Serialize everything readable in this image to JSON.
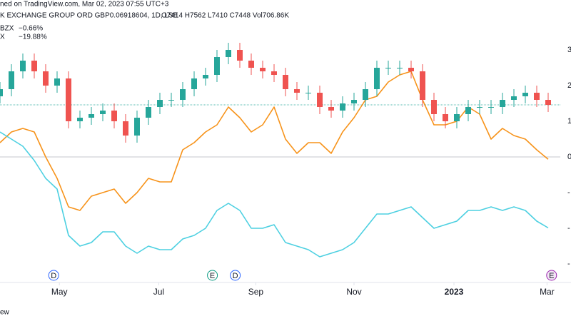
{
  "chart_data": {
    "type": "candlestick",
    "header": {
      "published": "ned on TradingView.com, Mar 02, 2023 07:55 UTC+3",
      "symbol": "K EXCHANGE GROUP ORD GBP0.06918604, 1D, LSE",
      "ohlc": "O7414 H7562 L7410 C7448 Vol706.86K"
    },
    "footer": "ew",
    "x": [
      0,
      1,
      2,
      3,
      4,
      5,
      6,
      7,
      8,
      9,
      10,
      11,
      12,
      13,
      14,
      15,
      16,
      17,
      18,
      19,
      20,
      21,
      22,
      23,
      24,
      25,
      26,
      27,
      28,
      29,
      30,
      31,
      32,
      33,
      34,
      35,
      36,
      37,
      38,
      39,
      40,
      41,
      42,
      43,
      44,
      45,
      46,
      47,
      48
    ],
    "xlim": [
      0,
      50
    ],
    "xticks": [
      {
        "value": 5.2,
        "label": "May"
      },
      {
        "value": 13.9,
        "label": "Jul"
      },
      {
        "value": 22.4,
        "label": "Sep"
      },
      {
        "value": 31,
        "label": "Nov"
      },
      {
        "value": 39.75,
        "label": "2023"
      },
      {
        "value": 47.9,
        "label": "Mar"
      }
    ],
    "ylim": [
      -36,
      44
    ],
    "yticks": [
      {
        "value": 30,
        "label": "3"
      },
      {
        "value": 20,
        "label": "2"
      },
      {
        "value": 10,
        "label": "1"
      },
      {
        "value": 0,
        "label": "0"
      },
      {
        "value": -10,
        "label": "-"
      },
      {
        "value": -20,
        "label": "-"
      },
      {
        "value": -30,
        "label": "-"
      }
    ],
    "up_color": "#26a69a",
    "down_color": "#ef5350",
    "open": [
      17,
      19,
      24,
      27,
      24,
      20,
      22,
      10,
      11,
      12,
      13,
      10,
      6,
      11,
      14,
      16,
      16,
      19,
      22,
      23,
      28,
      30,
      27,
      25,
      24,
      23,
      19,
      18,
      18,
      14,
      13,
      15,
      16,
      19,
      25,
      25,
      25,
      24,
      16,
      12,
      10,
      12,
      14,
      14,
      14,
      16,
      17,
      18,
      16
    ],
    "high": [
      21,
      26,
      29,
      29,
      26,
      24,
      24,
      13,
      14,
      15,
      15,
      12,
      13,
      16,
      18,
      18,
      21,
      24,
      25,
      30,
      32,
      32,
      29,
      27,
      26,
      25,
      21,
      20,
      20,
      16,
      17,
      18,
      21,
      27,
      27,
      27,
      27,
      26,
      18,
      14,
      14,
      16,
      16,
      16,
      18,
      19,
      20,
      20,
      18
    ],
    "low": [
      15,
      17,
      22,
      22,
      18,
      18,
      8,
      8,
      9,
      10,
      8,
      4,
      4,
      9,
      12,
      14,
      14,
      17,
      20,
      21,
      26,
      25,
      23,
      22,
      21,
      17,
      16,
      16,
      12,
      11,
      11,
      13,
      14,
      17,
      23,
      23,
      22,
      14,
      10,
      8,
      8,
      10,
      12,
      12,
      12,
      14,
      15,
      14,
      12.6
    ],
    "close": [
      19,
      24,
      27,
      24,
      20,
      22,
      10,
      11,
      12,
      13,
      10,
      6,
      11,
      14,
      16,
      16,
      19,
      22,
      23,
      28,
      30,
      27,
      25,
      24,
      23,
      19,
      18,
      18,
      14,
      13,
      15,
      16,
      19,
      25,
      25,
      25,
      24,
      16,
      12,
      10,
      12,
      14,
      14,
      14,
      16,
      17,
      18,
      16,
      14.6
    ],
    "series": [
      {
        "name": "BZX",
        "color": "#f7931a",
        "value_label": "−0.66%",
        "values": [
          4,
          7,
          8,
          7,
          0,
          -6,
          -14,
          -15,
          -11,
          -10,
          -9,
          -13,
          -10,
          -6,
          -7,
          -7,
          2,
          4,
          7,
          9,
          14,
          11,
          7,
          9,
          14,
          5,
          1,
          4,
          4,
          1,
          7,
          11,
          16,
          17,
          21,
          23,
          24,
          16,
          9,
          9,
          10,
          14,
          12,
          5,
          8,
          6,
          5,
          2,
          -0.66
        ]
      },
      {
        "name": "X",
        "color": "#4dd0e1",
        "value_label": "−19.88%",
        "values": [
          7,
          5,
          3,
          -1,
          -6,
          -9,
          -22,
          -25,
          -24,
          -21,
          -21,
          -25,
          -27,
          -25,
          -26,
          -26,
          -23,
          -22,
          -20,
          -15,
          -13,
          -15,
          -20,
          -20,
          -19,
          -24,
          -25,
          -26,
          -28,
          -27,
          -26,
          -24,
          -20,
          -16,
          -16,
          -15,
          -14,
          -17,
          -20,
          -19,
          -18,
          -15,
          -15,
          -14,
          -15,
          -14,
          -15,
          -18,
          -19.88
        ]
      }
    ],
    "events": [
      {
        "label": "D",
        "x": 4.7,
        "color": "#2962ff"
      },
      {
        "label": "E",
        "x": 18.6,
        "color": "#089981"
      },
      {
        "label": "D",
        "x": 20.6,
        "color": "#2962ff"
      },
      {
        "label": "E",
        "x": 48.3,
        "color": "#9c27b0"
      }
    ]
  }
}
